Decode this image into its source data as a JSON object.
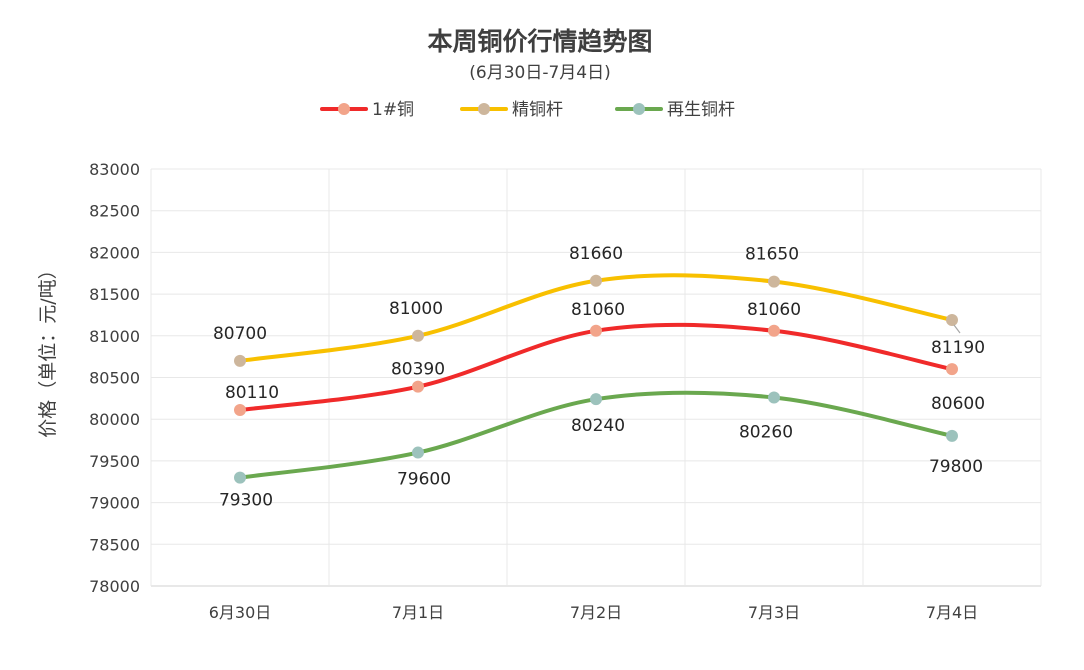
{
  "chart_data": {
    "type": "line",
    "title": "本周铜价行情趋势图",
    "subtitle": "(6月30日-7月4日)",
    "xlabel": "",
    "ylabel": "价格（单位：元/吨）",
    "categories": [
      "6月30日",
      "7月1日",
      "7月2日",
      "7月3日",
      "7月4日"
    ],
    "ylim": [
      78000,
      83000
    ],
    "yticks": [
      78000,
      78500,
      79000,
      79500,
      80000,
      80500,
      81000,
      81500,
      82000,
      82500,
      83000
    ],
    "grid": true,
    "legend_position": "top",
    "smooth": true,
    "series": [
      {
        "name": "1#铜",
        "color": "#f02a2a",
        "marker_color": "#f2a48a",
        "values": [
          80110,
          80390,
          81060,
          81060,
          80600
        ]
      },
      {
        "name": "精铜杆",
        "color": "#f8c000",
        "marker_color": "#cdb69c",
        "values": [
          80700,
          81000,
          81660,
          81650,
          81190
        ]
      },
      {
        "name": "再生铜杆",
        "color": "#6aa84f",
        "marker_color": "#9cc2bc",
        "values": [
          79300,
          79600,
          80240,
          80260,
          79800
        ]
      }
    ]
  }
}
